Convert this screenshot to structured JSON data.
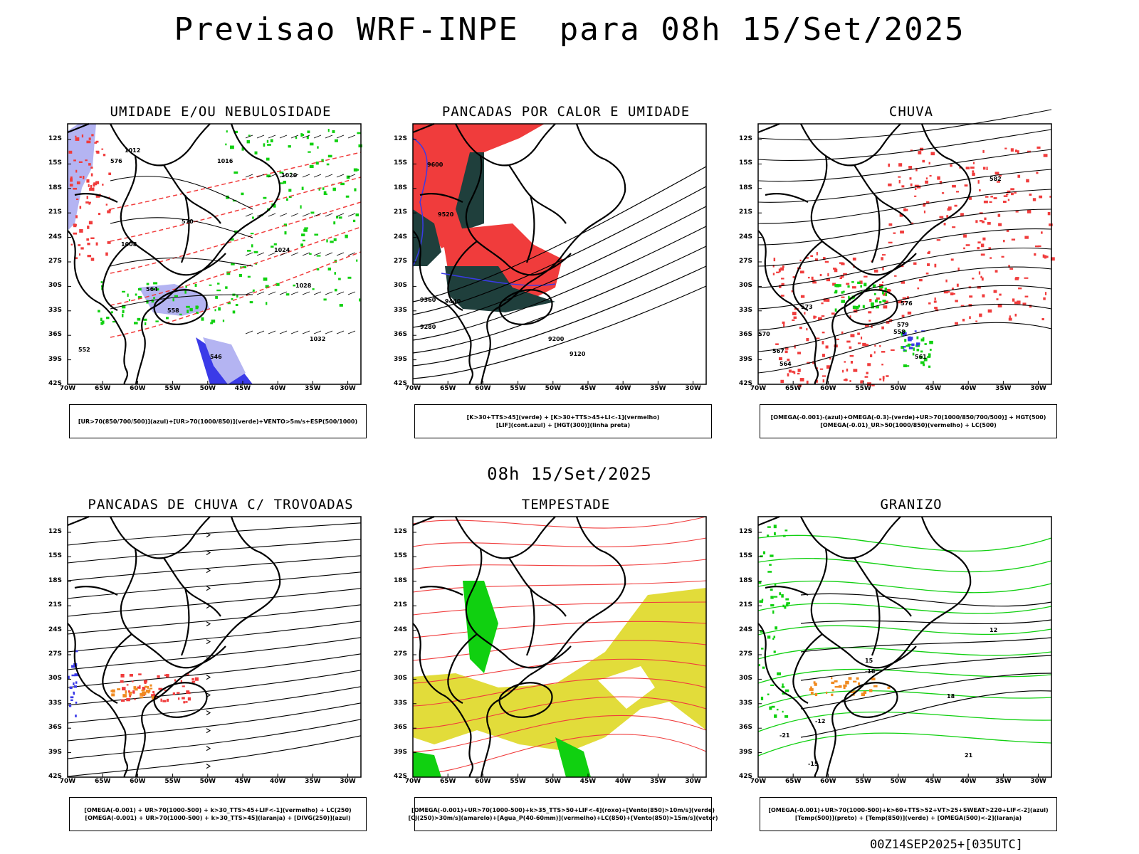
{
  "header": {
    "title": "Previsao WRF-INPE  para 08h 15/Set/2025",
    "subtitle": "08h 15/Set/2025",
    "footer_code": "00Z14SEP2025+[035UTC]"
  },
  "axes": {
    "lat_labels": [
      "12S",
      "15S",
      "18S",
      "21S",
      "24S",
      "27S",
      "30S",
      "33S",
      "36S",
      "39S",
      "42S"
    ],
    "lon_labels": [
      "70W",
      "65W",
      "60W",
      "55W",
      "50W",
      "45W",
      "40W",
      "35W",
      "30W"
    ]
  },
  "panels": [
    {
      "title": "UMIDADE E/OU NEBULOSIDADE",
      "legend": [
        "[UR>70(850/700/500)](azul)+[UR>70(1000/850)](verde)+VENTO>5m/s+ESP(500/1000)"
      ],
      "contour_labels": [
        "1012",
        "1016",
        "1020",
        "1024",
        "1028",
        "1032",
        "1008",
        "576",
        "570",
        "564",
        "558",
        "552",
        "546"
      ]
    },
    {
      "title": "PANCADAS POR CALOR E UMIDADE",
      "legend": [
        "[K>30+TTS>45](verde) + [K>30+TTS>45+LI<-1](vermelho)",
        "[LIF](cont.azul) + [HGT(300)](linha preta)"
      ],
      "contour_labels": [
        "9600",
        "9520",
        "9440",
        "9360",
        "9280",
        "9200",
        "9120"
      ]
    },
    {
      "title": "CHUVA",
      "legend": [
        "[OMEGA(-0.001)-(azul)+OMEGA(-0.3)-(verde)+UR>70(1000/850/700/500)] + HGT(500)",
        "[OMEGA(-0.01)_UR>50(1000/850)(vermelho) + LC(500)"
      ],
      "contour_labels": [
        "582",
        "579",
        "576",
        "573",
        "570",
        "567",
        "564",
        "561",
        "558"
      ]
    },
    {
      "title": "PANCADAS DE CHUVA C/ TROVOADAS",
      "legend": [
        "[OMEGA(-0.001) + UR>70(1000-500) + k>30_TTS>45+LIF<-1](vermelho) + LC(250)",
        "[OMEGA(-0.001) + UR>70(1000-500) + k>30_TTS>45](laranja) + [DIVG(250)](azul)"
      ],
      "contour_labels": []
    },
    {
      "title": "TEMPESTADE",
      "legend": [
        "[OMEGA(-0.001)+UR>70(1000-500)+k>35_TTS>50+LIF<-4](roxo)+[Vento(850)>10m/s](verde)",
        "[CJ(250)>30m/s](amarelo)+[Agua_P(40-60mm)](vermelho)+LC(850)+[Vento(850)>15m/s](vetor)"
      ],
      "contour_labels": []
    },
    {
      "title": "GRANIZO",
      "legend": [
        "[OMEGA(-0.001)+UR>70(1000-500)+k>60+TTS>52+VT>25+SWEAT>220+LIF<-2](azul)",
        "[Temp(500)](preto) + [Temp(850)](verde) + [OMEGA(500)<-2](laranja)"
      ],
      "contour_labels": [
        "12",
        "15",
        "18",
        "21",
        "-12",
        "-15",
        "-18",
        "-21"
      ]
    }
  ],
  "colors": {
    "blue": "#3a3ae8",
    "light_blue": "#b4b4f2",
    "green": "#10d010",
    "red": "#f03c3c",
    "dark_teal": "#1f3f3c",
    "yellow": "#e2dc3a",
    "orange": "#f08a20"
  }
}
